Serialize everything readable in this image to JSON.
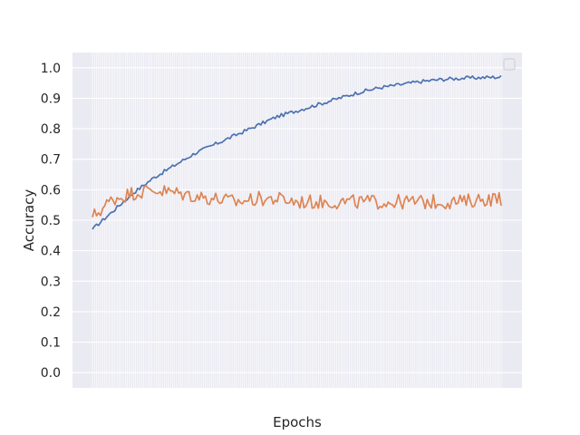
{
  "chart_data": {
    "type": "line",
    "title": "",
    "xlabel": "Epochs",
    "ylabel": "Accuracy",
    "xlim": [
      0,
      199
    ],
    "ylim": [
      -0.05,
      1.05
    ],
    "yticks": [
      "0.0",
      "0.1",
      "0.2",
      "0.3",
      "0.4",
      "0.5",
      "0.6",
      "0.7",
      "0.8",
      "0.9",
      "1.0"
    ],
    "grid": true,
    "legend": "top-right (empty)",
    "background": "#eaeaf2",
    "series": [
      {
        "color": "#4c72b0",
        "x": [
          0,
          10,
          20,
          30,
          40,
          50,
          60,
          70,
          80,
          90,
          100,
          110,
          120,
          130,
          140,
          150,
          160,
          170,
          180,
          190,
          199
        ],
        "values": [
          0.47,
          0.53,
          0.59,
          0.64,
          0.68,
          0.72,
          0.75,
          0.78,
          0.81,
          0.84,
          0.86,
          0.88,
          0.9,
          0.92,
          0.935,
          0.945,
          0.955,
          0.962,
          0.966,
          0.968,
          0.97
        ]
      },
      {
        "color": "#dd8452",
        "x": [
          0,
          10,
          20,
          30,
          40,
          50,
          60,
          70,
          80,
          90,
          100,
          110,
          120,
          130,
          140,
          150,
          160,
          170,
          180,
          190,
          199
        ],
        "values": [
          0.51,
          0.57,
          0.59,
          0.6,
          0.59,
          0.58,
          0.57,
          0.56,
          0.57,
          0.57,
          0.56,
          0.56,
          0.56,
          0.56,
          0.56,
          0.56,
          0.56,
          0.56,
          0.56,
          0.57,
          0.57
        ]
      }
    ]
  }
}
